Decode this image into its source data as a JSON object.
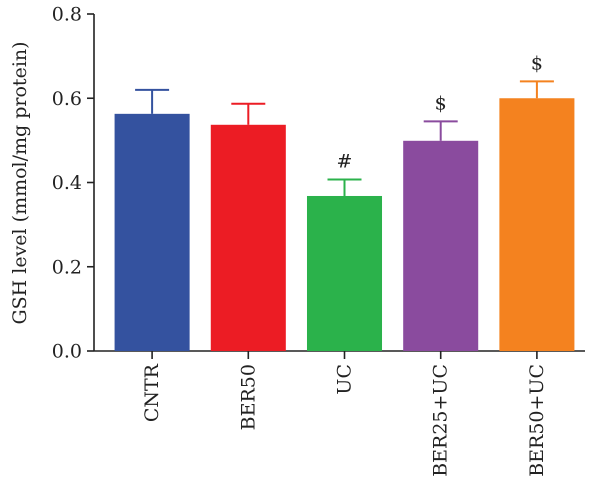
{
  "chart_data": {
    "type": "bar",
    "title": "",
    "xlabel": "",
    "ylabel": "GSH level (mmol/mg protein)",
    "ylim": [
      0,
      0.8
    ],
    "yticks": [
      0.0,
      0.2,
      0.4,
      0.6,
      0.8
    ],
    "ytick_labels": [
      "0.0",
      "0.2",
      "0.4",
      "0.6",
      "0.8"
    ],
    "grid": false,
    "categories": [
      "CNTR",
      "BER50",
      "UC",
      "BER25+UC",
      "BER50+UC"
    ],
    "values": [
      0.563,
      0.537,
      0.368,
      0.499,
      0.6
    ],
    "errors": [
      0.057,
      0.05,
      0.039,
      0.046,
      0.04
    ],
    "annotations": [
      "",
      "",
      "#",
      "$",
      "$"
    ],
    "colors": [
      "#34529f",
      "#ec1c24",
      "#2bb24b",
      "#8a4b9e",
      "#f4821f"
    ]
  }
}
